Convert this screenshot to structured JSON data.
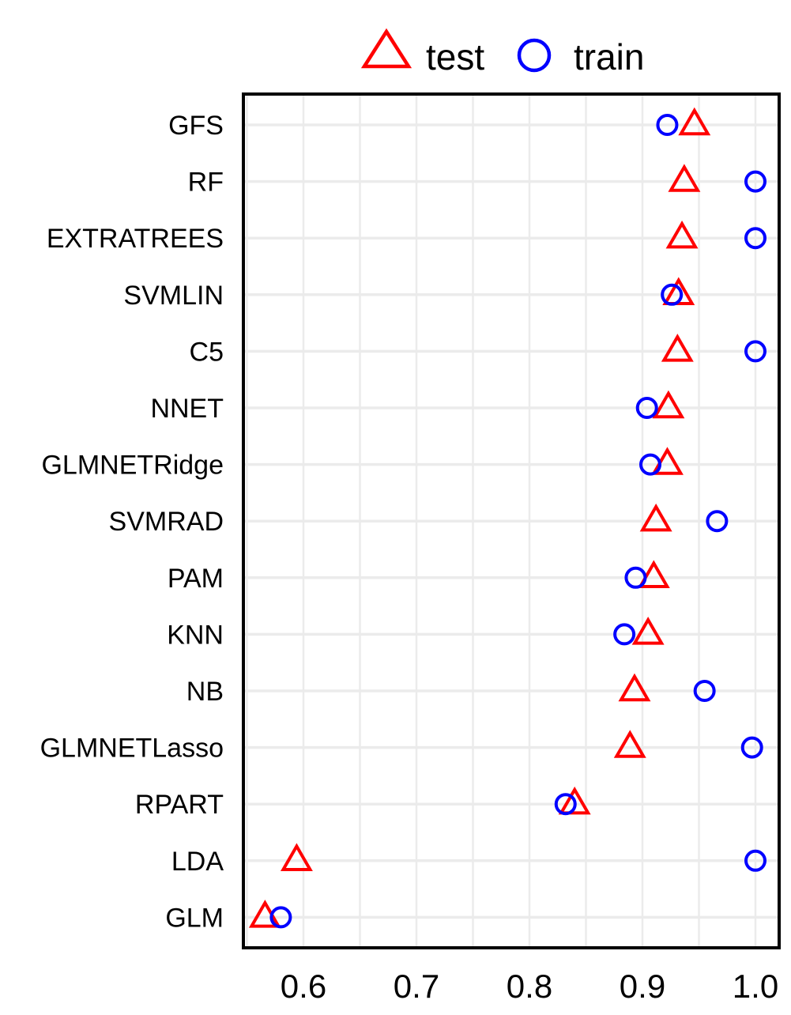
{
  "chart_data": {
    "type": "scatter",
    "title": "",
    "xlabel": "",
    "ylabel": "",
    "xlim": [
      0.55,
      1.0
    ],
    "x_ticks": [
      0.6,
      0.7,
      0.8,
      0.9,
      1.0
    ],
    "x_tick_labels": [
      "0.6",
      "0.7",
      "0.8",
      "0.9",
      "1.0"
    ],
    "grid": true,
    "legend_position": "top",
    "categories": [
      "GFS",
      "RF",
      "EXTRATREES",
      "SVMLIN",
      "C5",
      "NNET",
      "GLMNETRidge",
      "SVMRAD",
      "PAM",
      "KNN",
      "NB",
      "GLMNETLasso",
      "RPART",
      "LDA",
      "GLM"
    ],
    "series": [
      {
        "name": "test",
        "marker": "triangle",
        "color": "#ff0000",
        "values": [
          0.946,
          0.937,
          0.935,
          0.932,
          0.931,
          0.923,
          0.922,
          0.912,
          0.91,
          0.905,
          0.893,
          0.889,
          0.84,
          0.594,
          0.566
        ]
      },
      {
        "name": "train",
        "marker": "circle",
        "color": "#0000ff",
        "values": [
          0.922,
          1.0,
          1.0,
          0.926,
          1.0,
          0.904,
          0.907,
          0.966,
          0.894,
          0.884,
          0.955,
          0.997,
          0.832,
          1.0,
          0.58
        ]
      }
    ]
  }
}
